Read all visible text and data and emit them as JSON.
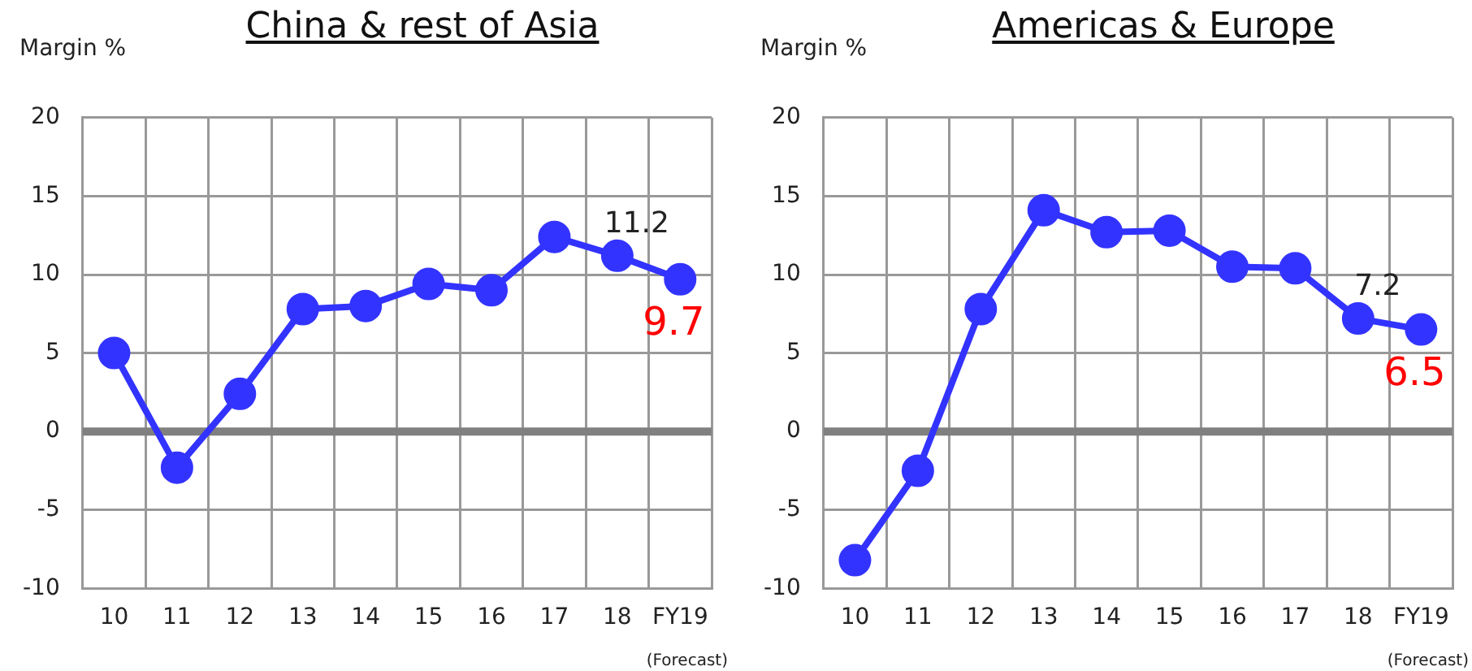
{
  "chart_data": [
    {
      "type": "line",
      "title": "China & rest of Asia",
      "ylabel": "Margin %",
      "categories": [
        "10",
        "11",
        "12",
        "13",
        "14",
        "15",
        "16",
        "17",
        "18",
        "FY19"
      ],
      "series": [
        {
          "color": "#3333ff",
          "values": [
            5.0,
            -2.3,
            2.4,
            7.8,
            8.0,
            9.4,
            9.0,
            12.4,
            11.2,
            9.7
          ],
          "value_labels": [
            null,
            null,
            null,
            null,
            null,
            null,
            null,
            null,
            "11.2",
            "9.7"
          ]
        }
      ],
      "ylim": [
        -10,
        20
      ],
      "yticks": [
        -10,
        -5,
        0,
        5,
        10,
        15,
        20
      ],
      "grid": true,
      "marker": "circle",
      "line_style": "solid",
      "ref_lines": [
        {
          "axis": "y",
          "value": 0,
          "color": "#808080"
        }
      ],
      "annotations": [
        "(Forecast)"
      ]
    },
    {
      "type": "line",
      "title": "Americas & Europe",
      "ylabel": "Margin %",
      "categories": [
        "10",
        "11",
        "12",
        "13",
        "14",
        "15",
        "16",
        "17",
        "18",
        "FY19"
      ],
      "series": [
        {
          "color": "#3333ff",
          "values": [
            -8.2,
            -2.5,
            7.8,
            14.1,
            12.7,
            12.8,
            10.5,
            10.4,
            7.2,
            6.5
          ],
          "value_labels": [
            null,
            null,
            null,
            null,
            null,
            null,
            null,
            null,
            "7.2",
            "6.5"
          ]
        }
      ],
      "ylim": [
        -10,
        20
      ],
      "yticks": [
        -10,
        -5,
        0,
        5,
        10,
        15,
        20
      ],
      "grid": true,
      "marker": "circle",
      "line_style": "solid",
      "ref_lines": [
        {
          "axis": "y",
          "value": 0,
          "color": "#808080"
        }
      ],
      "annotations": [
        "(Forecast)"
      ]
    }
  ]
}
